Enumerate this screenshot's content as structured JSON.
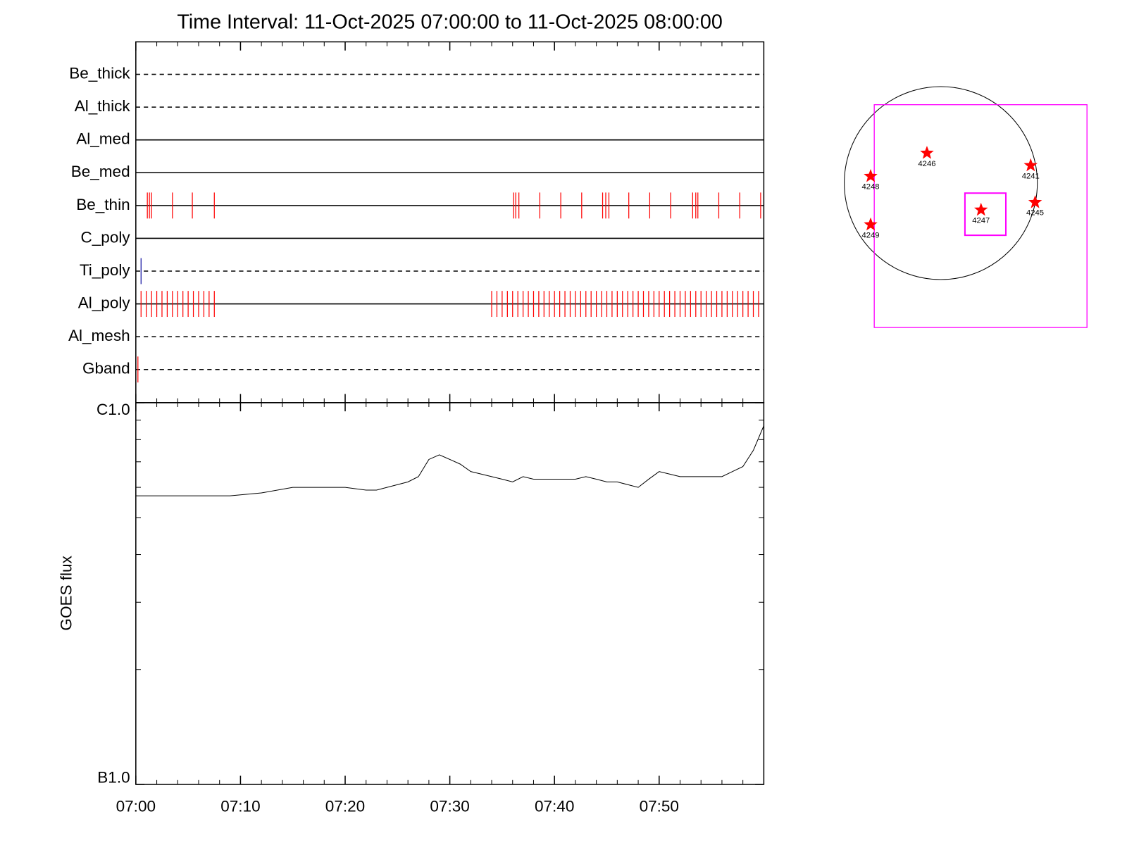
{
  "chart_data": [
    {
      "type": "events",
      "title": "Time Interval: 11-Oct-2025 07:00:00 to 11-Oct-2025 08:00:00",
      "xlim": [
        "07:00",
        "08:00"
      ],
      "xticks": [
        "07:00",
        "07:10",
        "07:20",
        "07:30",
        "07:40",
        "07:50"
      ],
      "xminor_ticks": [
        "07:02",
        "07:04",
        "07:06",
        "07:08",
        "07:12",
        "07:14",
        "07:16",
        "07:18",
        "07:22",
        "07:24",
        "07:26",
        "07:28",
        "07:32",
        "07:34",
        "07:36",
        "07:38",
        "07:42",
        "07:44",
        "07:46",
        "07:48",
        "07:52",
        "07:54",
        "07:56",
        "07:58"
      ],
      "rows": [
        {
          "name": "Be_thick",
          "style": "dashed",
          "events": []
        },
        {
          "name": "Al_thick",
          "style": "dashed",
          "events": []
        },
        {
          "name": "Al_med",
          "style": "solid",
          "events": []
        },
        {
          "name": "Be_med",
          "style": "solid",
          "events": []
        },
        {
          "name": "Be_thin",
          "style": "solid",
          "color": "#ff0000",
          "events": [
            "07:01:06",
            "07:01:18",
            "07:01:30",
            "07:03:30",
            "07:05:24",
            "07:07:30",
            "07:36:06",
            "07:36:18",
            "07:36:36",
            "07:38:36",
            "07:40:36",
            "07:42:36",
            "07:44:36",
            "07:44:54",
            "07:45:12",
            "07:47:06",
            "07:49:06",
            "07:51:06",
            "07:53:12",
            "07:53:30",
            "07:53:42",
            "07:55:42",
            "07:57:42",
            "07:59:42"
          ]
        },
        {
          "name": "C_poly",
          "style": "solid",
          "events": []
        },
        {
          "name": "Ti_poly",
          "style": "dashed",
          "color": "#1010a0",
          "events": [
            "07:00:30"
          ]
        },
        {
          "name": "Al_poly",
          "style": "solid",
          "color": "#ff0000",
          "events": [
            "07:00:30",
            "07:01:00",
            "07:01:30",
            "07:02:00",
            "07:02:30",
            "07:03:00",
            "07:03:30",
            "07:04:00",
            "07:04:30",
            "07:05:00",
            "07:05:30",
            "07:06:00",
            "07:06:30",
            "07:07:00",
            "07:07:30",
            "07:34:00",
            "07:34:30",
            "07:35:00",
            "07:35:30",
            "07:36:00",
            "07:36:30",
            "07:37:00",
            "07:37:30",
            "07:38:00",
            "07:38:30",
            "07:39:00",
            "07:39:30",
            "07:40:00",
            "07:40:30",
            "07:41:00",
            "07:41:30",
            "07:42:00",
            "07:42:30",
            "07:43:00",
            "07:43:30",
            "07:44:00",
            "07:44:30",
            "07:45:00",
            "07:45:30",
            "07:46:00",
            "07:46:30",
            "07:47:00",
            "07:47:30",
            "07:48:00",
            "07:48:30",
            "07:49:00",
            "07:49:30",
            "07:50:00",
            "07:50:30",
            "07:51:00",
            "07:51:30",
            "07:52:00",
            "07:52:30",
            "07:53:00",
            "07:53:30",
            "07:54:00",
            "07:54:30",
            "07:55:00",
            "07:55:30",
            "07:56:00",
            "07:56:30",
            "07:57:00",
            "07:57:30",
            "07:58:00",
            "07:58:30",
            "07:59:00",
            "07:59:30"
          ]
        },
        {
          "name": "Al_mesh",
          "style": "dashed",
          "events": []
        },
        {
          "name": "Gband",
          "style": "dashed",
          "color": "#ff0000",
          "events": [
            "07:00:12"
          ]
        }
      ]
    },
    {
      "type": "line",
      "ylabel": "GOES flux",
      "log": true,
      "color": "#000000",
      "xlim": [
        "07:00",
        "08:00"
      ],
      "xticks": [
        "07:00",
        "07:10",
        "07:20",
        "07:30",
        "07:40",
        "07:50"
      ],
      "xminor_ticks": [
        "07:02",
        "07:04",
        "07:06",
        "07:08",
        "07:12",
        "07:14",
        "07:16",
        "07:18",
        "07:22",
        "07:24",
        "07:26",
        "07:28",
        "07:32",
        "07:34",
        "07:36",
        "07:38",
        "07:42",
        "07:44",
        "07:46",
        "07:48",
        "07:52",
        "07:54",
        "07:56",
        "07:58"
      ],
      "ylim": [
        1e-07,
        1e-06
      ],
      "yticks": [
        {
          "value": 1e-06,
          "label": "C1.0"
        },
        {
          "value": 1e-07,
          "label": "B1.0"
        }
      ],
      "yminor_ticks": [
        2e-07,
        3e-07,
        4e-07,
        5e-07,
        6e-07,
        7e-07,
        8e-07,
        9e-07
      ],
      "x": [
        "07:00",
        "07:01",
        "07:03",
        "07:05",
        "07:07",
        "07:09",
        "07:12",
        "07:15",
        "07:17",
        "07:20",
        "07:22",
        "07:23",
        "07:25",
        "07:26",
        "07:27",
        "07:28",
        "07:29",
        "07:30",
        "07:31",
        "07:32",
        "07:33",
        "07:34",
        "07:35",
        "07:36",
        "07:37",
        "07:38",
        "07:39",
        "07:40",
        "07:41",
        "07:42",
        "07:43",
        "07:44",
        "07:45",
        "07:46",
        "07:47",
        "07:48",
        "07:49",
        "07:50",
        "07:51",
        "07:52",
        "07:53",
        "07:54",
        "07:55",
        "07:56",
        "07:57",
        "07:58",
        "07:59",
        "08:00"
      ],
      "values": [
        5.7e-07,
        5.7e-07,
        5.7e-07,
        5.7e-07,
        5.7e-07,
        5.7e-07,
        5.8e-07,
        6e-07,
        6e-07,
        6e-07,
        5.9e-07,
        5.9e-07,
        6.1e-07,
        6.2e-07,
        6.4e-07,
        7.1e-07,
        7.3e-07,
        7.1e-07,
        6.9e-07,
        6.6e-07,
        6.5e-07,
        6.4e-07,
        6.3e-07,
        6.2e-07,
        6.4e-07,
        6.3e-07,
        6.3e-07,
        6.3e-07,
        6.3e-07,
        6.3e-07,
        6.4e-07,
        6.3e-07,
        6.2e-07,
        6.2e-07,
        6.1e-07,
        6e-07,
        6.3e-07,
        6.6e-07,
        6.5e-07,
        6.4e-07,
        6.4e-07,
        6.4e-07,
        6.4e-07,
        6.4e-07,
        6.6e-07,
        6.8e-07,
        7.5e-07,
        8.7e-07
      ]
    },
    {
      "type": "map",
      "xlim": [
        -1100,
        1700
      ],
      "ylim": [
        -1450,
        1050
      ],
      "disk_radius": 960,
      "box_color": "#ff00ff",
      "marker_color": "#ff0000",
      "boxes": [
        {
          "x": [
            -662,
            1454
          ],
          "y": [
            -1367,
            742
          ]
        },
        {
          "x": [
            240,
            647
          ],
          "y": [
            -494,
            -95
          ]
        }
      ],
      "regions": [
        {
          "name": "4246",
          "x": -138,
          "y": 284
        },
        {
          "name": "4241",
          "x": 894,
          "y": 167
        },
        {
          "name": "4248",
          "x": -698,
          "y": 65
        },
        {
          "name": "4245",
          "x": 938,
          "y": -182
        },
        {
          "name": "4247",
          "x": 400,
          "y": -254
        },
        {
          "name": "4249",
          "x": -698,
          "y": -393
        }
      ]
    }
  ]
}
